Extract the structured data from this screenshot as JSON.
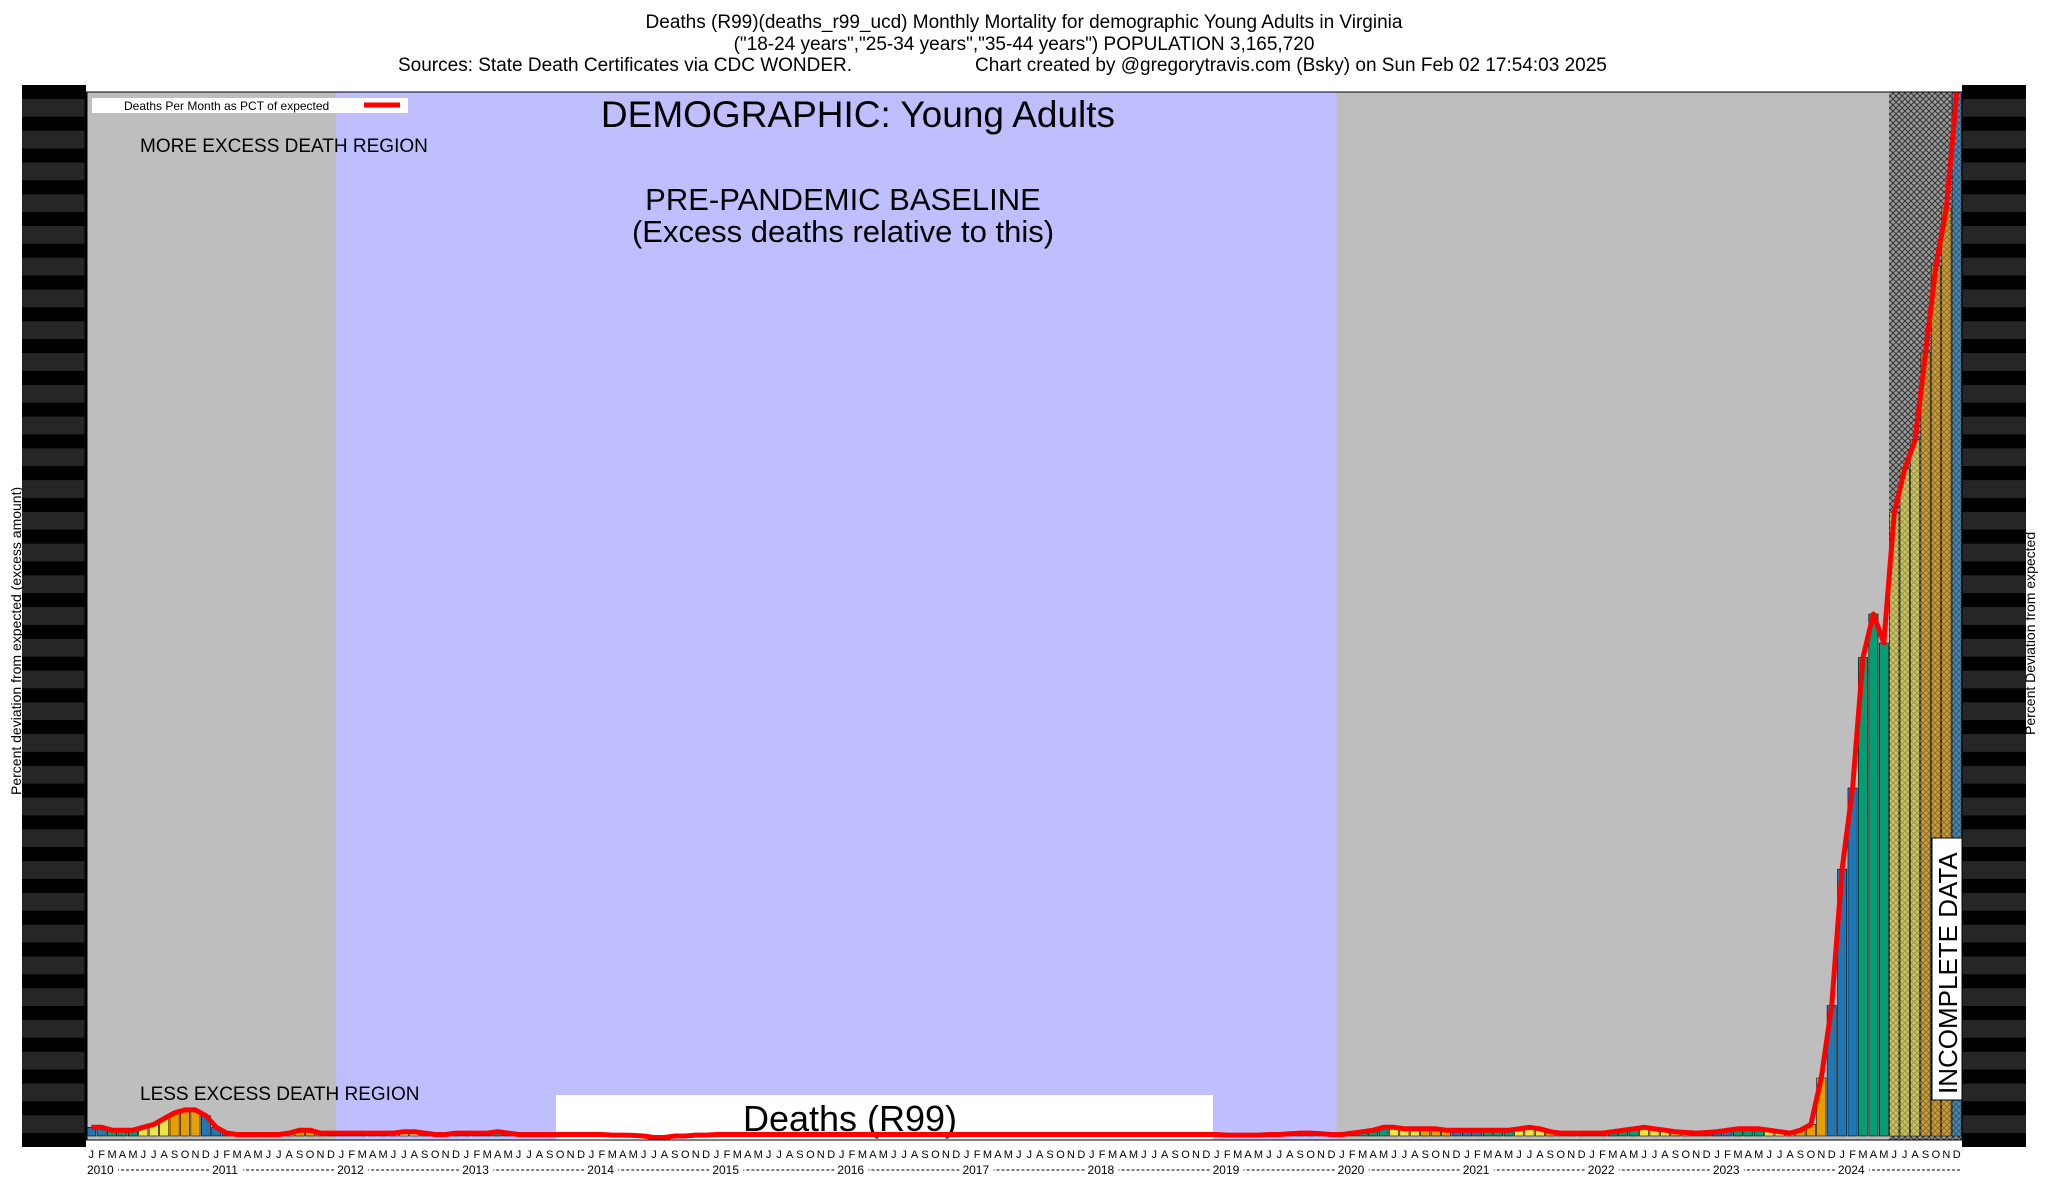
{
  "header": {
    "line1": "Deaths (R99)(deaths_r99_ucd) Monthly Mortality for demographic Young Adults in Virginia",
    "line2": "(\"18-24 years\",\"25-34 years\",\"35-44 years\") POPULATION 3,165,720",
    "line3_left": "Sources: State Death Certificates via CDC WONDER.",
    "line3_right": "Chart created by @gregorytravis.com (Bsky) on Sun Feb 02 17:54:03 2025"
  },
  "chart_data": {
    "type": "bar",
    "title": "DEMOGRAPHIC: Young Adults",
    "subtitle": "Deaths (R99)",
    "ylabel_left": "Percent deviation from expected (excess amount)",
    "ylabel_right": "Percent Deviation from expected",
    "legend": {
      "label": "Deaths Per Month as PCT of expected",
      "position": "top-left",
      "color": "#ff0000"
    },
    "annotations": {
      "more_excess": "MORE EXCESS DEATH REGION",
      "less_excess": "LESS EXCESS DEATH REGION",
      "baseline_line1": "PRE-PANDEMIC BASELINE",
      "baseline_line2": "(Excess deaths relative to this)",
      "incomplete": "INCOMPLETE DATA"
    },
    "regions": {
      "baseline": {
        "from": "2012-01",
        "to": "2019-12",
        "color": "#bfbfff"
      },
      "incomplete": {
        "from": "2024-06",
        "to": "2024-12"
      }
    },
    "month_letters": [
      "J",
      "F",
      "M",
      "A",
      "M",
      "J",
      "J",
      "A",
      "S",
      "O",
      "N",
      "D"
    ],
    "years": [
      "2010",
      "2011",
      "2012",
      "2013",
      "2014",
      "2015",
      "2016",
      "2017",
      "2018",
      "2019",
      "2020",
      "2021",
      "2022",
      "2023",
      "2024"
    ],
    "season_colors": [
      "#1f77b4",
      "#1f77b4",
      "#009e73",
      "#009e73",
      "#009e73",
      "#f0e442",
      "#f0e442",
      "#f0e442",
      "#e69f00",
      "#e69f00",
      "#e69f00",
      "#1f77b4"
    ],
    "grid": false,
    "series": [
      {
        "values": [
          3,
          3,
          2,
          2,
          2,
          3,
          4,
          6,
          8,
          9,
          9,
          7,
          3,
          1,
          0.5,
          0.5,
          0.5,
          0.5,
          0.5,
          1,
          2,
          2,
          1,
          1,
          1,
          1,
          1,
          1,
          1,
          1,
          1.5,
          1.5,
          1,
          0.5,
          0.5,
          1,
          1,
          1,
          1,
          1.5,
          1,
          0.5,
          0.5,
          0.5,
          0.5,
          0.5,
          0.5,
          0.5,
          0.5,
          0.5,
          0.3,
          0.3,
          0.2,
          0,
          -0.5,
          -0.5,
          0,
          0,
          0.3,
          0.3,
          0.5,
          0.5,
          0.5,
          0.5,
          0.5,
          0.5,
          0.5,
          0.5,
          0.5,
          0.5,
          0.5,
          0.5,
          0.5,
          0.5,
          0.5,
          0.5,
          0.5,
          0.5,
          0.5,
          0.5,
          0.5,
          0.5,
          0.5,
          0.5,
          0.5,
          0.5,
          0.5,
          0.5,
          0.5,
          0.5,
          0.5,
          0.5,
          0.5,
          0.5,
          0.5,
          0.5,
          0.5,
          0.5,
          0.5,
          0.5,
          0.5,
          0.5,
          0.5,
          0.5,
          0.5,
          0.5,
          0.5,
          0.5,
          0.5,
          0.3,
          0.3,
          0.3,
          0.3,
          0.5,
          0.5,
          0.8,
          1,
          1,
          0.8,
          0.5,
          0.5,
          1,
          1.5,
          2,
          3,
          3,
          2.5,
          2.5,
          2.5,
          2.5,
          2,
          2,
          2,
          2,
          2,
          2,
          2,
          2.5,
          3,
          2.5,
          1.5,
          1,
          1,
          1,
          1,
          1,
          1.5,
          2,
          2.5,
          3,
          2.5,
          2,
          1.5,
          1.2,
          1,
          1.2,
          1.5,
          2,
          2.5,
          2.5,
          2.5,
          2,
          1.5,
          1,
          2,
          4,
          20,
          45,
          92,
          120,
          165,
          180,
          170,
          215,
          230,
          240,
          270,
          300,
          320,
          360
        ]
      }
    ]
  }
}
